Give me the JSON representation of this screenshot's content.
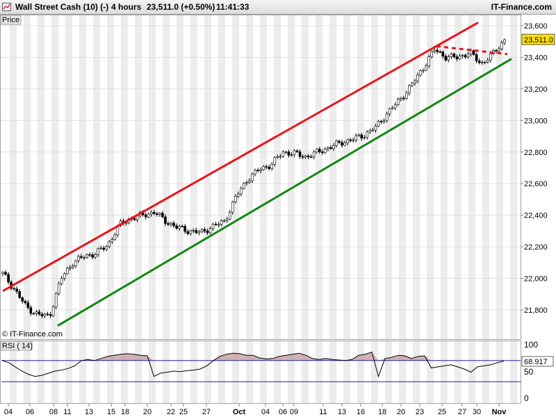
{
  "header": {
    "instrument": "Wall Street Cash (10) (-)",
    "timeframe": "4 hours",
    "price_change": "23,511.0 (+0.50%)",
    "time": "11:41:33",
    "brand": "IT-Finance.com"
  },
  "price_panel": {
    "label": "Price",
    "watermark": "© IT-Finance.com",
    "last_price_tag": "23,511.0",
    "y_ticks": [
      "23,600",
      "23,400",
      "23,200",
      "23,000",
      "22,800",
      "22,600",
      "22,400",
      "22,200",
      "22,000",
      "21,800"
    ],
    "y_tick_values": [
      23600,
      23400,
      23200,
      23000,
      22800,
      22600,
      22400,
      22200,
      22000,
      21800
    ]
  },
  "rsi_panel": {
    "label": "RSI ( 14)",
    "value_tag": "68.917",
    "y_ticks": [
      "100",
      "50",
      "0"
    ],
    "upper_level": 70,
    "lower_level": 30
  },
  "x_labels": [
    "04",
    "06",
    "08",
    "11",
    "13",
    "15",
    "18",
    "20",
    "22",
    "25",
    "27",
    "Oct",
    "04",
    "06",
    "09",
    "11",
    "13",
    "16",
    "18",
    "20",
    "23",
    "25",
    "27",
    "30",
    "Nov"
  ],
  "colors": {
    "resistance": "#e8141b",
    "support": "#118811",
    "band": "#ececec",
    "rsi_line": "#000000",
    "rsi_fill": "#c8a0a0",
    "rsi_levels": "#2020a0"
  },
  "chart_data": {
    "type": "candlestick",
    "title": "Wall Street Cash (10) (-)",
    "timeframe": "4 hours",
    "last": 23511.0,
    "change_pct": 0.5,
    "ylim": [
      21640,
      23680
    ],
    "close_path": [
      {
        "x": "Sep 03",
        "close": 22030
      },
      {
        "x": "Sep 04",
        "close": 21930
      },
      {
        "x": "Sep 05",
        "close": 21820
      },
      {
        "x": "Sep 06",
        "close": 21770
      },
      {
        "x": "Sep 07",
        "close": 21760
      },
      {
        "x": "Sep 10",
        "close": 22000
      },
      {
        "x": "Sep 11",
        "close": 22100
      },
      {
        "x": "Sep 12",
        "close": 22140
      },
      {
        "x": "Sep 13",
        "close": 22160
      },
      {
        "x": "Sep 14",
        "close": 22210
      },
      {
        "x": "Sep 17",
        "close": 22340
      },
      {
        "x": "Sep 18",
        "close": 22380
      },
      {
        "x": "Sep 19",
        "close": 22400
      },
      {
        "x": "Sep 20",
        "close": 22420
      },
      {
        "x": "Sep 21",
        "close": 22360
      },
      {
        "x": "Sep 24",
        "close": 22320
      },
      {
        "x": "Sep 25",
        "close": 22300
      },
      {
        "x": "Sep 26",
        "close": 22290
      },
      {
        "x": "Sep 27",
        "close": 22330
      },
      {
        "x": "Sep 28",
        "close": 22360
      },
      {
        "x": "Oct 01",
        "close": 22520
      },
      {
        "x": "Oct 02",
        "close": 22630
      },
      {
        "x": "Oct 03",
        "close": 22690
      },
      {
        "x": "Oct 04",
        "close": 22720
      },
      {
        "x": "Oct 05",
        "close": 22800
      },
      {
        "x": "Oct 08",
        "close": 22790
      },
      {
        "x": "Oct 09",
        "close": 22770
      },
      {
        "x": "Oct 10",
        "close": 22800
      },
      {
        "x": "Oct 11",
        "close": 22830
      },
      {
        "x": "Oct 12",
        "close": 22860
      },
      {
        "x": "Oct 15",
        "close": 22880
      },
      {
        "x": "Oct 16",
        "close": 22910
      },
      {
        "x": "Oct 17",
        "close": 22960
      },
      {
        "x": "Oct 18",
        "close": 23050
      },
      {
        "x": "Oct 19",
        "close": 23130
      },
      {
        "x": "Oct 22",
        "close": 23220
      },
      {
        "x": "Oct 23",
        "close": 23330
      },
      {
        "x": "Oct 24",
        "close": 23450
      },
      {
        "x": "Oct 25",
        "close": 23400
      },
      {
        "x": "Oct 26",
        "close": 23400
      },
      {
        "x": "Oct 29",
        "close": 23430
      },
      {
        "x": "Oct 30",
        "close": 23360
      },
      {
        "x": "Oct 31",
        "close": 23420
      },
      {
        "x": "Nov 01",
        "close": 23511
      }
    ],
    "trendlines": [
      {
        "name": "resistance",
        "from": {
          "x": "Sep 03",
          "y": 21920
        },
        "to": {
          "x": "Oct 26",
          "y": 23620
        }
      },
      {
        "name": "support",
        "from": {
          "x": "Sep 07",
          "y": 21700
        },
        "to": {
          "x": "Nov 01",
          "y": 23390
        }
      },
      {
        "name": "short-term resistance (dashed)",
        "from": {
          "x": "Oct 24",
          "y": 23470
        },
        "to": {
          "x": "Nov 01",
          "y": 23420
        }
      }
    ],
    "rsi": {
      "period": 14,
      "last": 68.917,
      "ylim": [
        0,
        100
      ],
      "values": [
        70,
        66,
        58,
        50,
        44,
        40,
        42,
        46,
        50,
        52,
        55,
        60,
        70,
        72,
        70,
        74,
        78,
        80,
        82,
        83,
        82,
        80,
        79,
        40,
        46,
        48,
        50,
        49,
        51,
        52,
        54,
        60,
        70,
        78,
        82,
        84,
        83,
        80,
        80,
        75,
        73,
        74,
        78,
        80,
        82,
        84,
        80,
        74,
        72,
        74,
        72,
        71,
        70,
        72,
        80,
        82,
        86,
        40,
        74,
        76,
        80,
        79,
        74,
        78,
        79,
        56,
        58,
        60,
        62,
        58,
        54,
        48,
        58,
        60,
        62,
        66,
        69
      ]
    }
  }
}
